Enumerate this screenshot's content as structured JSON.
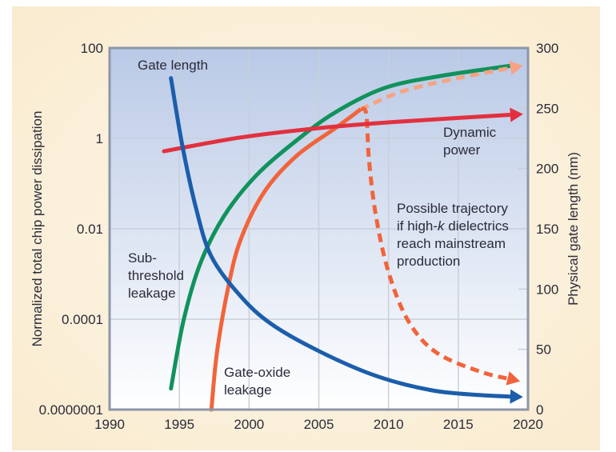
{
  "chart_data": {
    "type": "line",
    "xlabel": "",
    "ylabel": "Normalized total chip power dissipation",
    "y2label": "Physical gate length (nm)",
    "xlim": [
      1990,
      2020
    ],
    "xticks": [
      "1990",
      "1995",
      "2000",
      "2005",
      "2010",
      "2015",
      "2020"
    ],
    "yscale": "log",
    "yticks": [
      "100",
      "1",
      "0.01",
      "0.0001",
      "0.0000001"
    ],
    "y2lim": [
      0,
      300
    ],
    "y2ticks": [
      "300",
      "250",
      "200",
      "150",
      "100",
      "50",
      "0"
    ],
    "grid": true,
    "colors": {
      "gate_length": "#1b5eab",
      "subthreshold": "#11925c",
      "gate_oxide": "#f1643b",
      "gate_oxide_highk": "#f6a383",
      "dynamic": "#e2303f",
      "plot_top": "#b9c9e6",
      "plot_bottom": "#ffffff",
      "background": "#f9ebcf"
    },
    "series": [
      {
        "key": "gate_length",
        "axis": "right",
        "unit": "nm",
        "x": [
          1994.4,
          1995.2,
          1996.2,
          1997.3,
          1999.4,
          2001.6,
          2005.1,
          2009.1,
          2013.1,
          2016.6,
          2019.3
        ],
        "y": [
          275,
          220,
          167,
          127,
          94,
          71,
          48,
          28,
          16,
          12,
          10.6
        ]
      },
      {
        "key": "subthreshold",
        "axis": "left",
        "x": [
          1994.4,
          1995.3,
          1996.5,
          1998.2,
          2000.5,
          2003.4,
          2006.2,
          2009.7,
          2013.7,
          2018.9
        ],
        "y": [
          5e-07,
          9e-05,
          0.0017,
          0.019,
          0.15,
          0.9,
          3.8,
          13,
          24,
          41
        ]
      },
      {
        "key": "gate_oxide",
        "axis": "left",
        "x": [
          1997.3,
          1997.7,
          1998.5,
          1999.4,
          2001.1,
          2003.4,
          2006.2,
          2008.0
        ],
        "y": [
          1e-07,
          8e-06,
          0.0005,
          0.0058,
          0.066,
          0.41,
          1.7,
          4.4
        ]
      },
      {
        "key": "gate_oxide_continued",
        "axis": "left",
        "dashed": true,
        "x": [
          2008.0,
          2010.8,
          2014.3,
          2019.3
        ],
        "y": [
          4.4,
          10.5,
          19.5,
          39
        ]
      },
      {
        "key": "gate_oxide_highk",
        "axis": "left",
        "dashed": true,
        "x": [
          2008.0,
          2008.4,
          2008.6,
          2009.1,
          2010.0,
          2011.4,
          2013.4,
          2016.6,
          2019.1
        ],
        "y": [
          4.4,
          3.5,
          0.33,
          0.019,
          0.0011,
          9e-05,
          8e-06,
          1.8e-06,
          9.5e-07
        ]
      },
      {
        "key": "dynamic",
        "axis": "left",
        "x": [
          1993.9,
          1999.4,
          2005.1,
          2010.8,
          2019.3
        ],
        "y": [
          0.52,
          1.05,
          1.7,
          2.35,
          3.4
        ]
      }
    ],
    "annotations": {
      "gate_length": "Gate length",
      "dynamic_1": "Dynamic",
      "dynamic_2": "power",
      "highk_1": "Possible trajectory",
      "highk_2a": "if high-",
      "highk_2k": "k",
      "highk_2b": " dielectrics",
      "highk_3": "reach mainstream",
      "highk_4": "production",
      "sub_1": "Sub-",
      "sub_2": "threshold",
      "sub_3": "leakage",
      "oxide_1": "Gate-oxide",
      "oxide_2": "leakage"
    }
  }
}
